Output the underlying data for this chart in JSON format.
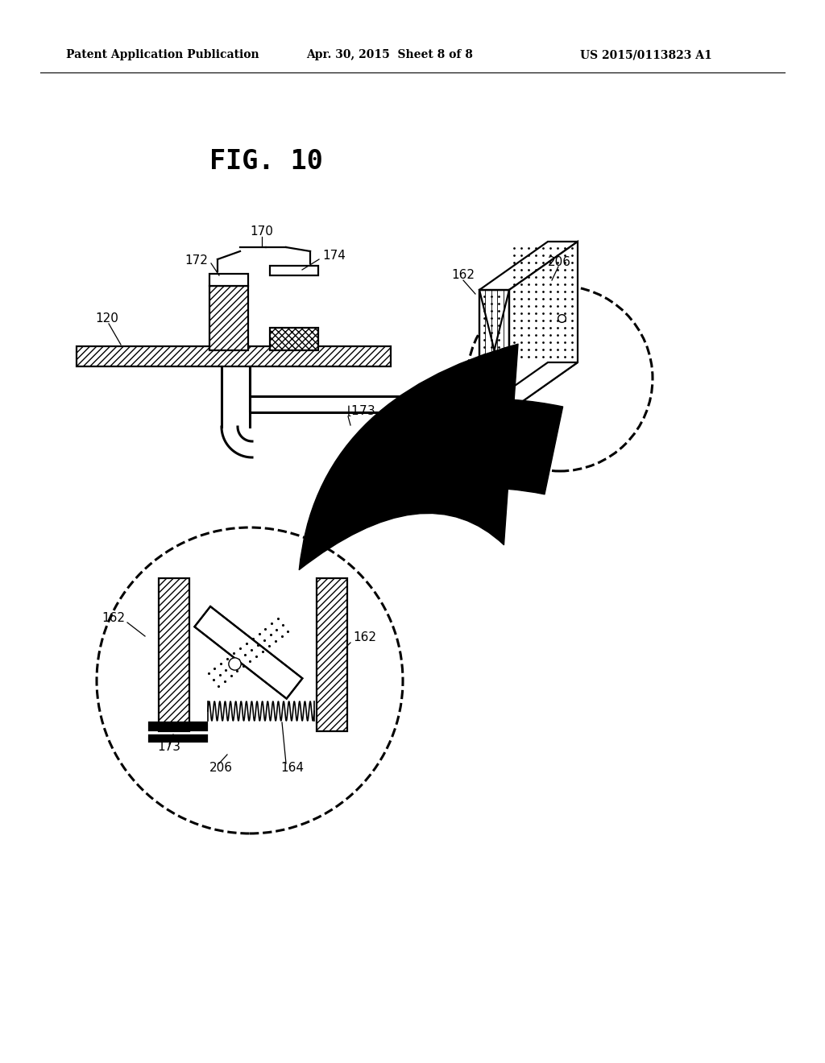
{
  "bg_color": "#ffffff",
  "header_left": "Patent Application Publication",
  "header_mid": "Apr. 30, 2015  Sheet 8 of 8",
  "header_right": "US 2015/0113823 A1",
  "fig_label": "FIG. 10",
  "line_color": "#000000"
}
